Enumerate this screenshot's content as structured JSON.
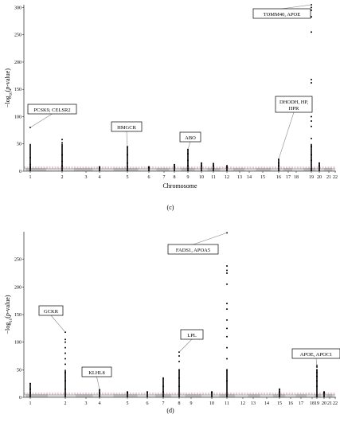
{
  "chart_data": [
    {
      "type": "scatter",
      "panel_label": "(c)",
      "xlabel": "Chromosome",
      "ylabel_html": "−log<tspan baseline-shift=\"sub\" font-size=\"5\">10</tspan>(<tspan font-style=\"italic\">p</tspan>-value)",
      "ylim": [
        0,
        305
      ],
      "yticks": [
        0,
        50,
        100,
        150,
        200,
        250,
        300
      ],
      "chromosome_labels": [
        "1",
        "2",
        "3",
        "4",
        "5",
        "6",
        "7",
        "8",
        "9",
        "10",
        "11",
        "12",
        "13",
        "14",
        "15",
        "16",
        "17",
        "18",
        "19",
        "20",
        "21",
        "22"
      ],
      "threshold_lines": true,
      "series": [
        {
          "chr": 1,
          "values": [
            80,
            25,
            12,
            8,
            6
          ]
        },
        {
          "chr": 2,
          "values": [
            58,
            52,
            30,
            18,
            10
          ]
        },
        {
          "chr": 4,
          "values": [
            8,
            6
          ]
        },
        {
          "chr": 5,
          "values": [
            45,
            30,
            15,
            8
          ]
        },
        {
          "chr": 6,
          "values": [
            8,
            6
          ]
        },
        {
          "chr": 8,
          "values": [
            12,
            8
          ]
        },
        {
          "chr": 9,
          "values": [
            40,
            32,
            20,
            10
          ]
        },
        {
          "chr": 10,
          "values": [
            15,
            10
          ]
        },
        {
          "chr": 11,
          "values": [
            14,
            10
          ]
        },
        {
          "chr": 12,
          "values": [
            10,
            7
          ]
        },
        {
          "chr": 16,
          "values": [
            22,
            15,
            10
          ]
        },
        {
          "chr": 19,
          "values": [
            305,
            300,
            295,
            283,
            255,
            168,
            162,
            118,
            100,
            92,
            82,
            60,
            45,
            30,
            20
          ]
        },
        {
          "chr": 20,
          "values": [
            15,
            10
          ]
        }
      ],
      "annotations": [
        {
          "label": "PCSK9, CELSR2",
          "chr": 1,
          "y": 80
        },
        {
          "label": "HMGCR",
          "chr": 5,
          "y": 45
        },
        {
          "label": "ABO",
          "chr": 9,
          "y": 40
        },
        {
          "label": "DHODH, HP, HPR",
          "chr": 16,
          "y": 22
        },
        {
          "label": "TOMM40, APOE",
          "chr": 19,
          "y": 305
        }
      ]
    },
    {
      "type": "scatter",
      "panel_label": "(d)",
      "xlabel": "",
      "ylabel_html": "−log<tspan baseline-shift=\"sub\" font-size=\"5\">10</tspan>(<tspan font-style=\"italic\">p</tspan>-value)",
      "ylim": [
        0,
        300
      ],
      "yticks": [
        0,
        50,
        100,
        150,
        200,
        250
      ],
      "chromosome_labels": [
        "1",
        "2",
        "3",
        "4",
        "5",
        "6",
        "7",
        "8",
        "9",
        "10",
        "11",
        "12",
        "13",
        "14",
        "15",
        "16",
        "17",
        "18",
        "19",
        "20",
        "21",
        "22"
      ],
      "threshold_lines": true,
      "series": [
        {
          "chr": 1,
          "values": [
            25,
            15,
            8
          ]
        },
        {
          "chr": 2,
          "values": [
            118,
            105,
            100,
            90,
            80,
            70,
            60,
            45,
            30,
            15
          ]
        },
        {
          "chr": 4,
          "values": [
            14,
            8
          ]
        },
        {
          "chr": 5,
          "values": [
            10,
            8
          ]
        },
        {
          "chr": 6,
          "values": [
            10
          ]
        },
        {
          "chr": 7,
          "values": [
            35,
            20,
            10
          ]
        },
        {
          "chr": 8,
          "values": [
            82,
            75,
            65,
            50,
            35,
            20
          ]
        },
        {
          "chr": 10,
          "values": [
            10,
            8
          ]
        },
        {
          "chr": 11,
          "values": [
            298,
            238,
            230,
            225,
            205,
            170,
            160,
            140,
            125,
            110,
            90,
            70,
            50,
            30
          ]
        },
        {
          "chr": 15,
          "values": [
            15,
            10
          ]
        },
        {
          "chr": 19,
          "values": [
            58,
            55,
            50,
            45,
            38,
            30,
            20
          ]
        },
        {
          "chr": 20,
          "values": [
            10,
            8
          ]
        }
      ],
      "annotations": [
        {
          "label": "GCKR",
          "chr": 2,
          "y": 118
        },
        {
          "label": "KLHL8",
          "chr": 4,
          "y": 14
        },
        {
          "label": "LPL",
          "chr": 8,
          "y": 82
        },
        {
          "label": "FADS1, APOA5",
          "chr": 11,
          "y": 298
        },
        {
          "label": "APOE, APOC1",
          "chr": 19,
          "y": 58
        }
      ]
    }
  ]
}
